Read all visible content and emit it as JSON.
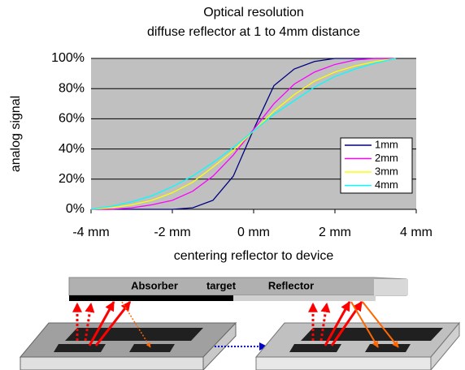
{
  "chart_data": {
    "type": "line",
    "title": "Optical resolution",
    "subtitle": "diffuse reflector at 1 to 4mm distance",
    "x_label": "centering reflector to device",
    "y_label": "analog signal",
    "x": [
      -4,
      -3.5,
      -3,
      -2.5,
      -2,
      -1.5,
      -1,
      -0.5,
      0,
      0.5,
      1,
      1.5,
      2,
      2.5,
      3,
      3.5
    ],
    "series": [
      {
        "name": "1mm",
        "color": "#000080",
        "values": [
          0,
          0,
          0,
          0,
          0,
          1,
          6,
          22,
          53,
          82,
          93,
          98,
          100,
          100,
          100,
          100
        ]
      },
      {
        "name": "2mm",
        "color": "#ff00ff",
        "values": [
          0,
          0,
          1,
          3,
          6,
          12,
          22,
          36,
          53,
          70,
          83,
          91,
          96,
          99,
          100,
          100
        ]
      },
      {
        "name": "3mm",
        "color": "#ffff00",
        "values": [
          0,
          1,
          3,
          6,
          11,
          18,
          28,
          39,
          52,
          65,
          76,
          85,
          91,
          95,
          98,
          100
        ]
      },
      {
        "name": "4mm",
        "color": "#00ffff",
        "values": [
          0,
          2,
          5,
          9,
          15,
          22,
          31,
          41,
          52,
          63,
          72,
          81,
          88,
          93,
          97,
          100
        ]
      }
    ],
    "xlim": [
      -4,
      4
    ],
    "xticks": [
      {
        "value": -4,
        "label": "-4 mm"
      },
      {
        "value": -2,
        "label": "-2 mm"
      },
      {
        "value": 0,
        "label": "0 mm"
      },
      {
        "value": 2,
        "label": "2 mm"
      },
      {
        "value": 4,
        "label": "4 mm"
      }
    ],
    "ylim": [
      0,
      100
    ],
    "yticks": [
      {
        "value": 0,
        "label": "0%"
      },
      {
        "value": 20,
        "label": "20%"
      },
      {
        "value": 40,
        "label": "40%"
      },
      {
        "value": 60,
        "label": "60%"
      },
      {
        "value": 80,
        "label": "80%"
      },
      {
        "value": 100,
        "label": "100%"
      }
    ],
    "grid": true,
    "legend": "lower right",
    "plot_background": "#c0c0c0"
  },
  "diagram": {
    "labels": [
      "Absorber",
      "target",
      "Reflector"
    ]
  }
}
